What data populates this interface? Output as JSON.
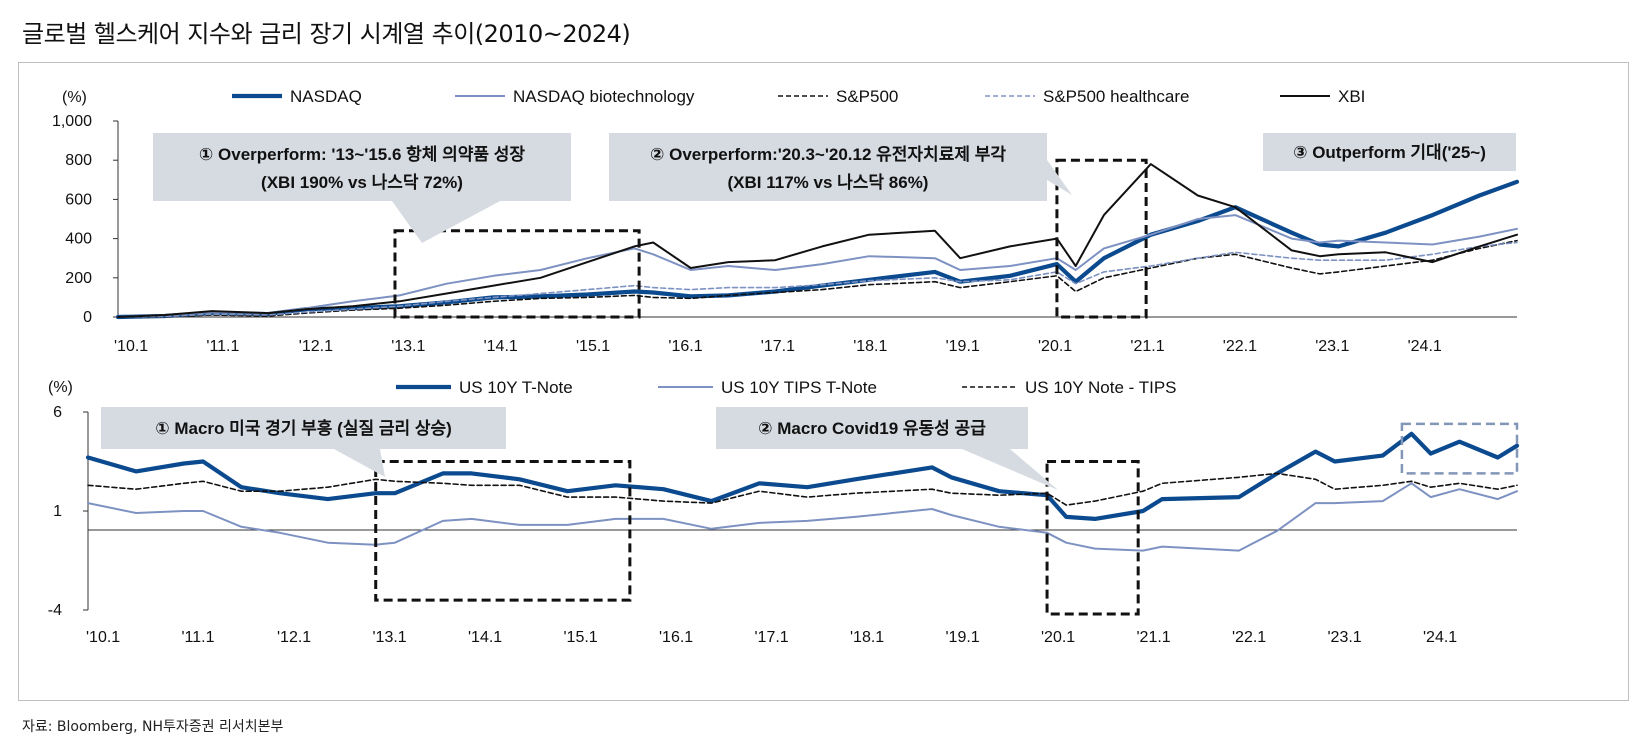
{
  "title": "글로벌 헬스케어 지수와 금리 장기 시계열 추이(2010~2024)",
  "source": "자료: Bloomberg, NH투자증권 리서치본부",
  "colors": {
    "navy": "#0b4a8f",
    "lightblue": "#7d92c2",
    "black": "#111111",
    "callout_bg": "#d6dbe2",
    "grey_box": "#8296b8"
  },
  "chart_data": [
    {
      "type": "line",
      "unit_label": "(%)",
      "ylim": [
        0,
        1000
      ],
      "y_ticks": [
        "1,000",
        "800",
        "600",
        "400",
        "200",
        "0"
      ],
      "y_tick_values": [
        1000,
        800,
        600,
        400,
        200,
        0
      ],
      "x_tick_labels": [
        "'10.1",
        "'11.1",
        "'12.1",
        "'13.1",
        "'14.1",
        "'15.1",
        "'16.1",
        "'17.1",
        "'18.1",
        "'19.1",
        "'20.1",
        "'21.1",
        "'22.1",
        "'23.1",
        "'24.1"
      ],
      "x_range": [
        2010.0,
        2024.9
      ],
      "series": [
        {
          "name": "NASDAQ",
          "style": "navy-thick",
          "x": [
            2010.0,
            2010.5,
            2011.0,
            2011.6,
            2012.0,
            2012.5,
            2013.0,
            2013.5,
            2014.0,
            2014.5,
            2015.0,
            2015.5,
            2015.7,
            2016.1,
            2016.5,
            2017.0,
            2017.5,
            2018.0,
            2018.7,
            2018.97,
            2019.5,
            2020.0,
            2020.2,
            2020.5,
            2021.0,
            2021.5,
            2021.9,
            2022.5,
            2022.8,
            2023.0,
            2023.5,
            2024.0,
            2024.5,
            2024.9
          ],
          "values": [
            0,
            5,
            20,
            15,
            40,
            45,
            55,
            75,
            100,
            105,
            115,
            130,
            125,
            105,
            110,
            130,
            160,
            190,
            230,
            180,
            210,
            270,
            180,
            300,
            420,
            490,
            560,
            430,
            370,
            360,
            430,
            520,
            620,
            690
          ]
        },
        {
          "name": "NASDAQ biotechnology",
          "style": "lightblue",
          "x": [
            2010.0,
            2010.5,
            2011.0,
            2011.6,
            2012.0,
            2012.5,
            2013.0,
            2013.5,
            2014.0,
            2014.5,
            2015.0,
            2015.5,
            2015.7,
            2016.1,
            2016.5,
            2017.0,
            2017.5,
            2018.0,
            2018.7,
            2018.97,
            2019.5,
            2020.0,
            2020.2,
            2020.5,
            2021.0,
            2021.5,
            2021.9,
            2022.5,
            2022.8,
            2023.0,
            2023.5,
            2024.0,
            2024.5,
            2024.9
          ],
          "values": [
            0,
            10,
            25,
            20,
            45,
            80,
            110,
            170,
            210,
            240,
            300,
            350,
            320,
            240,
            260,
            240,
            270,
            310,
            300,
            240,
            260,
            300,
            240,
            350,
            420,
            500,
            520,
            400,
            380,
            390,
            380,
            370,
            410,
            450
          ]
        },
        {
          "name": "S&P500",
          "style": "black-dash",
          "x": [
            2010.0,
            2010.5,
            2011.0,
            2011.6,
            2012.0,
            2012.5,
            2013.0,
            2013.5,
            2014.0,
            2014.5,
            2015.0,
            2015.5,
            2015.7,
            2016.1,
            2016.5,
            2017.0,
            2017.5,
            2018.0,
            2018.7,
            2018.97,
            2019.5,
            2020.0,
            2020.2,
            2020.5,
            2021.0,
            2021.5,
            2021.9,
            2022.5,
            2022.8,
            2023.0,
            2023.5,
            2024.0,
            2024.5,
            2024.9
          ],
          "values": [
            0,
            0,
            10,
            5,
            20,
            35,
            45,
            60,
            80,
            95,
            100,
            110,
            100,
            95,
            110,
            125,
            140,
            165,
            180,
            150,
            180,
            210,
            130,
            200,
            250,
            300,
            320,
            250,
            220,
            230,
            260,
            290,
            350,
            390
          ]
        },
        {
          "name": "S&P500 healthcare",
          "style": "lightblue-dash",
          "x": [
            2010.0,
            2010.5,
            2011.0,
            2011.6,
            2012.0,
            2012.5,
            2013.0,
            2013.5,
            2014.0,
            2014.5,
            2015.0,
            2015.5,
            2015.7,
            2016.1,
            2016.5,
            2017.0,
            2017.5,
            2018.0,
            2018.7,
            2018.97,
            2019.5,
            2020.0,
            2020.2,
            2020.5,
            2021.0,
            2021.5,
            2021.9,
            2022.5,
            2022.8,
            2023.0,
            2023.5,
            2024.0,
            2024.5,
            2024.9
          ],
          "values": [
            0,
            2,
            15,
            10,
            25,
            40,
            55,
            80,
            100,
            120,
            140,
            160,
            150,
            140,
            150,
            150,
            165,
            185,
            200,
            180,
            190,
            230,
            170,
            230,
            260,
            300,
            330,
            300,
            290,
            290,
            290,
            320,
            360,
            380
          ]
        },
        {
          "name": "XBI",
          "style": "black-solid",
          "x": [
            2010.0,
            2010.5,
            2011.0,
            2011.6,
            2012.0,
            2012.5,
            2013.0,
            2013.5,
            2014.0,
            2014.5,
            2015.0,
            2015.5,
            2015.7,
            2016.1,
            2016.5,
            2017.0,
            2017.5,
            2018.0,
            2018.7,
            2018.97,
            2019.5,
            2020.0,
            2020.2,
            2020.5,
            2021.0,
            2021.5,
            2021.9,
            2022.5,
            2022.8,
            2023.0,
            2023.5,
            2024.0,
            2024.5,
            2024.9
          ],
          "values": [
            0,
            10,
            30,
            20,
            40,
            55,
            80,
            120,
            160,
            200,
            280,
            360,
            380,
            250,
            280,
            290,
            360,
            420,
            440,
            300,
            360,
            400,
            260,
            520,
            780,
            620,
            560,
            340,
            310,
            320,
            330,
            280,
            360,
            420
          ]
        }
      ],
      "callouts": [
        {
          "line1": "① Overperform: '13~'15.6 항체 의약품 성장",
          "line2": "(XBI 190% vs 나스닥 72%)"
        },
        {
          "line1": "② Overperform:'20.3~'20.12 유전자치료제 부각",
          "line2": "(XBI 117% vs 나스닥 86%)"
        },
        {
          "line1": "③ Outperform 기대('25~)"
        }
      ],
      "highlight_ranges": [
        {
          "x": [
            2012.95,
            2015.55
          ],
          "y": [
            0,
            440
          ]
        },
        {
          "x": [
            2020.0,
            2020.95
          ],
          "y": [
            0,
            800
          ]
        }
      ]
    },
    {
      "type": "line",
      "unit_label": "(%)",
      "ylim": [
        -4,
        6
      ],
      "y_ticks": [
        "6",
        "1",
        "-4"
      ],
      "y_tick_values": [
        6,
        1,
        -4
      ],
      "x_tick_labels": [
        "'10.1",
        "'11.1",
        "'12.1",
        "'13.1",
        "'14.1",
        "'15.1",
        "'16.1",
        "'17.1",
        "'18.1",
        "'19.1",
        "'20.1",
        "'21.1",
        "'22.1",
        "'23.1",
        "'24.1"
      ],
      "x_range": [
        2010.0,
        2024.9
      ],
      "series": [
        {
          "name": "US 10Y T-Note",
          "style": "navy-thick",
          "x": [
            2010.0,
            2010.5,
            2011.0,
            2011.2,
            2011.6,
            2012.0,
            2012.5,
            2013.0,
            2013.2,
            2013.7,
            2014.0,
            2014.5,
            2015.0,
            2015.5,
            2016.0,
            2016.5,
            2017.0,
            2017.5,
            2018.0,
            2018.8,
            2019.0,
            2019.5,
            2020.0,
            2020.2,
            2020.5,
            2021.0,
            2021.2,
            2022.0,
            2022.4,
            2022.8,
            2023.0,
            2023.5,
            2023.8,
            2024.0,
            2024.3,
            2024.7,
            2024.9
          ],
          "values": [
            3.7,
            3.0,
            3.4,
            3.5,
            2.2,
            1.9,
            1.6,
            1.9,
            1.9,
            2.9,
            2.9,
            2.6,
            2.0,
            2.3,
            2.1,
            1.5,
            2.4,
            2.2,
            2.6,
            3.2,
            2.7,
            2.0,
            1.8,
            0.7,
            0.6,
            1.0,
            1.6,
            1.7,
            2.9,
            4.0,
            3.5,
            3.8,
            4.9,
            3.9,
            4.5,
            3.7,
            4.3
          ]
        },
        {
          "name": "US 10Y TIPS T-Note",
          "style": "lightblue",
          "x": [
            2010.0,
            2010.5,
            2011.0,
            2011.2,
            2011.6,
            2012.0,
            2012.5,
            2013.0,
            2013.2,
            2013.7,
            2014.0,
            2014.5,
            2015.0,
            2015.5,
            2016.0,
            2016.5,
            2017.0,
            2017.5,
            2018.0,
            2018.8,
            2019.0,
            2019.5,
            2020.0,
            2020.2,
            2020.5,
            2021.0,
            2021.2,
            2022.0,
            2022.4,
            2022.8,
            2023.0,
            2023.5,
            2023.8,
            2024.0,
            2024.3,
            2024.7,
            2024.9
          ],
          "values": [
            1.4,
            0.9,
            1.0,
            1.0,
            0.2,
            -0.1,
            -0.6,
            -0.7,
            -0.6,
            0.5,
            0.6,
            0.3,
            0.3,
            0.6,
            0.6,
            0.1,
            0.4,
            0.5,
            0.7,
            1.1,
            0.8,
            0.2,
            -0.1,
            -0.6,
            -0.9,
            -1.0,
            -0.8,
            -1.0,
            0.0,
            1.4,
            1.4,
            1.5,
            2.4,
            1.7,
            2.1,
            1.6,
            2.0
          ]
        },
        {
          "name": "US 10Y Note - TIPS",
          "style": "black-dash",
          "x": [
            2010.0,
            2010.5,
            2011.0,
            2011.2,
            2011.6,
            2012.0,
            2012.5,
            2013.0,
            2013.2,
            2013.7,
            2014.0,
            2014.5,
            2015.0,
            2015.5,
            2016.0,
            2016.5,
            2017.0,
            2017.5,
            2018.0,
            2018.8,
            2019.0,
            2019.5,
            2020.0,
            2020.2,
            2020.5,
            2021.0,
            2021.2,
            2022.0,
            2022.4,
            2022.8,
            2023.0,
            2023.5,
            2023.8,
            2024.0,
            2024.3,
            2024.7,
            2024.9
          ],
          "values": [
            2.3,
            2.1,
            2.4,
            2.5,
            2.0,
            2.0,
            2.2,
            2.6,
            2.5,
            2.4,
            2.3,
            2.3,
            1.7,
            1.7,
            1.5,
            1.4,
            2.0,
            1.7,
            1.9,
            2.1,
            1.9,
            1.8,
            1.9,
            1.3,
            1.5,
            2.0,
            2.4,
            2.7,
            2.9,
            2.6,
            2.1,
            2.3,
            2.5,
            2.2,
            2.4,
            2.1,
            2.3
          ]
        }
      ],
      "callouts": [
        {
          "line1": "①  Macro 미국 경기 부흥 (실질 금리 상승)"
        },
        {
          "line1": "②  Macro Covid19 유동성 공급"
        }
      ],
      "highlight_ranges": [
        {
          "x": [
            2013.0,
            2015.65
          ],
          "y": [
            -3.5,
            3.5
          ]
        },
        {
          "x": [
            2020.0,
            2020.95
          ],
          "y": [
            -4.2,
            3.5
          ]
        },
        {
          "x": [
            2023.7,
            2024.9
          ],
          "y": [
            2.9,
            5.4
          ]
        }
      ]
    }
  ]
}
